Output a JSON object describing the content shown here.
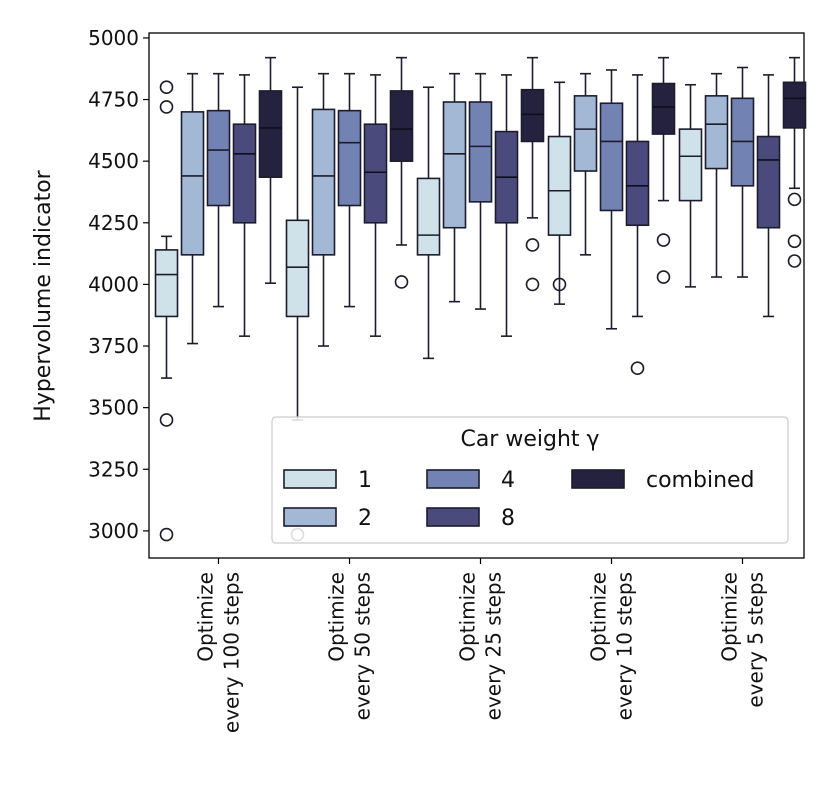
{
  "chart_data": {
    "type": "boxplot",
    "title": "",
    "xlabel": "",
    "ylabel": "Hypervolume indicator",
    "ylim": [
      2890,
      5020
    ],
    "yticks": [
      3000,
      3250,
      3500,
      3750,
      4000,
      4250,
      4500,
      4750,
      5000
    ],
    "grid": false,
    "categories": [
      "Optimize\nevery 100 steps",
      "Optimize\nevery 50 steps",
      "Optimize\nevery 25 steps",
      "Optimize\nevery 10 steps",
      "Optimize\nevery 5 steps"
    ],
    "legend": {
      "title": "Car weight γ",
      "position": "lower-right",
      "columns": 3
    },
    "series": [
      {
        "name": "1",
        "color": "#cfe2ea",
        "boxes": [
          {
            "whislo": 3620,
            "q1": 3870,
            "med": 4040,
            "q3": 4140,
            "whishi": 4195,
            "fliers": [
              4800,
              4720,
              3450,
              2985
            ]
          },
          {
            "whislo": 3450,
            "q1": 3870,
            "med": 4070,
            "q3": 4260,
            "whishi": 4800,
            "fliers": [
              2985
            ]
          },
          {
            "whislo": 3700,
            "q1": 4120,
            "med": 4200,
            "q3": 4430,
            "whishi": 4800,
            "fliers": []
          },
          {
            "whislo": 3920,
            "q1": 4200,
            "med": 4380,
            "q3": 4600,
            "whishi": 4820,
            "fliers": [
              4000
            ]
          },
          {
            "whislo": 3990,
            "q1": 4340,
            "med": 4520,
            "q3": 4630,
            "whishi": 4810,
            "fliers": []
          }
        ]
      },
      {
        "name": "2",
        "color": "#a2b8d4",
        "boxes": [
          {
            "whislo": 3760,
            "q1": 4120,
            "med": 4440,
            "q3": 4700,
            "whishi": 4855,
            "fliers": []
          },
          {
            "whislo": 3750,
            "q1": 4120,
            "med": 4440,
            "q3": 4710,
            "whishi": 4855,
            "fliers": []
          },
          {
            "whislo": 3930,
            "q1": 4230,
            "med": 4530,
            "q3": 4740,
            "whishi": 4855,
            "fliers": []
          },
          {
            "whislo": 4120,
            "q1": 4460,
            "med": 4630,
            "q3": 4765,
            "whishi": 4855,
            "fliers": []
          },
          {
            "whislo": 4030,
            "q1": 4470,
            "med": 4650,
            "q3": 4765,
            "whishi": 4855,
            "fliers": []
          }
        ]
      },
      {
        "name": "4",
        "color": "#7282b2",
        "boxes": [
          {
            "whislo": 3910,
            "q1": 4320,
            "med": 4545,
            "q3": 4705,
            "whishi": 4855,
            "fliers": []
          },
          {
            "whislo": 3910,
            "q1": 4320,
            "med": 4575,
            "q3": 4705,
            "whishi": 4855,
            "fliers": []
          },
          {
            "whislo": 3900,
            "q1": 4335,
            "med": 4560,
            "q3": 4740,
            "whishi": 4855,
            "fliers": []
          },
          {
            "whislo": 3820,
            "q1": 4300,
            "med": 4580,
            "q3": 4735,
            "whishi": 4870,
            "fliers": []
          },
          {
            "whislo": 4030,
            "q1": 4400,
            "med": 4580,
            "q3": 4755,
            "whishi": 4880,
            "fliers": []
          }
        ]
      },
      {
        "name": "8",
        "color": "#4a4a7c",
        "boxes": [
          {
            "whislo": 3790,
            "q1": 4250,
            "med": 4530,
            "q3": 4650,
            "whishi": 4850,
            "fliers": []
          },
          {
            "whislo": 3790,
            "q1": 4250,
            "med": 4455,
            "q3": 4650,
            "whishi": 4850,
            "fliers": []
          },
          {
            "whislo": 3790,
            "q1": 4250,
            "med": 4435,
            "q3": 4620,
            "whishi": 4850,
            "fliers": []
          },
          {
            "whislo": 3870,
            "q1": 4240,
            "med": 4400,
            "q3": 4580,
            "whishi": 4850,
            "fliers": [
              3660
            ]
          },
          {
            "whislo": 3870,
            "q1": 4230,
            "med": 4505,
            "q3": 4600,
            "whishi": 4850,
            "fliers": []
          }
        ]
      },
      {
        "name": "combined",
        "color": "#252240",
        "boxes": [
          {
            "whislo": 4005,
            "q1": 4435,
            "med": 4635,
            "q3": 4785,
            "whishi": 4920,
            "fliers": []
          },
          {
            "whislo": 4160,
            "q1": 4500,
            "med": 4630,
            "q3": 4785,
            "whishi": 4920,
            "fliers": [
              4010
            ]
          },
          {
            "whislo": 4270,
            "q1": 4580,
            "med": 4690,
            "q3": 4790,
            "whishi": 4920,
            "fliers": [
              4160,
              4000
            ]
          },
          {
            "whislo": 4340,
            "q1": 4610,
            "med": 4720,
            "q3": 4815,
            "whishi": 4920,
            "fliers": [
              4180,
              4030
            ]
          },
          {
            "whislo": 4390,
            "q1": 4635,
            "med": 4755,
            "q3": 4820,
            "whishi": 4920,
            "fliers": [
              4345,
              4175,
              4095
            ]
          }
        ]
      }
    ]
  }
}
